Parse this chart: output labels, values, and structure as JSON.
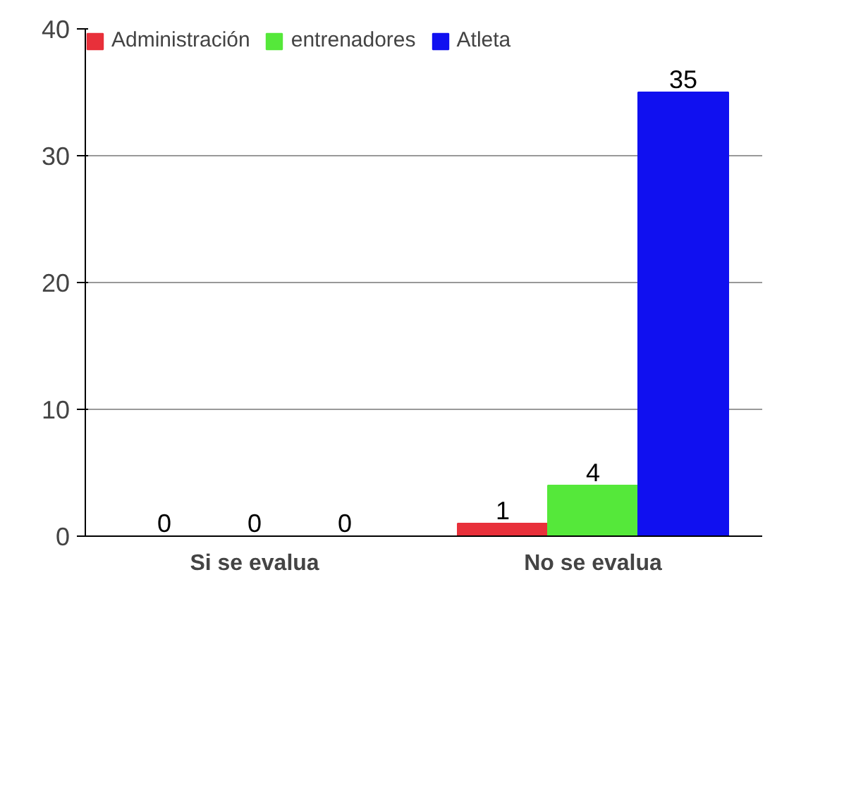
{
  "chart_data": {
    "type": "bar",
    "categories": [
      "Si se evalua",
      "No se evalua"
    ],
    "series": [
      {
        "name": "Administración",
        "color": "#e8303a",
        "values": [
          0,
          1
        ]
      },
      {
        "name": "entrenadores",
        "color": "#55e83a",
        "values": [
          0,
          4
        ]
      },
      {
        "name": "Atleta",
        "color": "#1010f0",
        "values": [
          0,
          35
        ]
      }
    ],
    "ylim": [
      0,
      40
    ],
    "yticks": [
      0,
      10,
      20,
      30,
      40
    ],
    "grid": "y",
    "legend": "top",
    "data_labels": true
  }
}
